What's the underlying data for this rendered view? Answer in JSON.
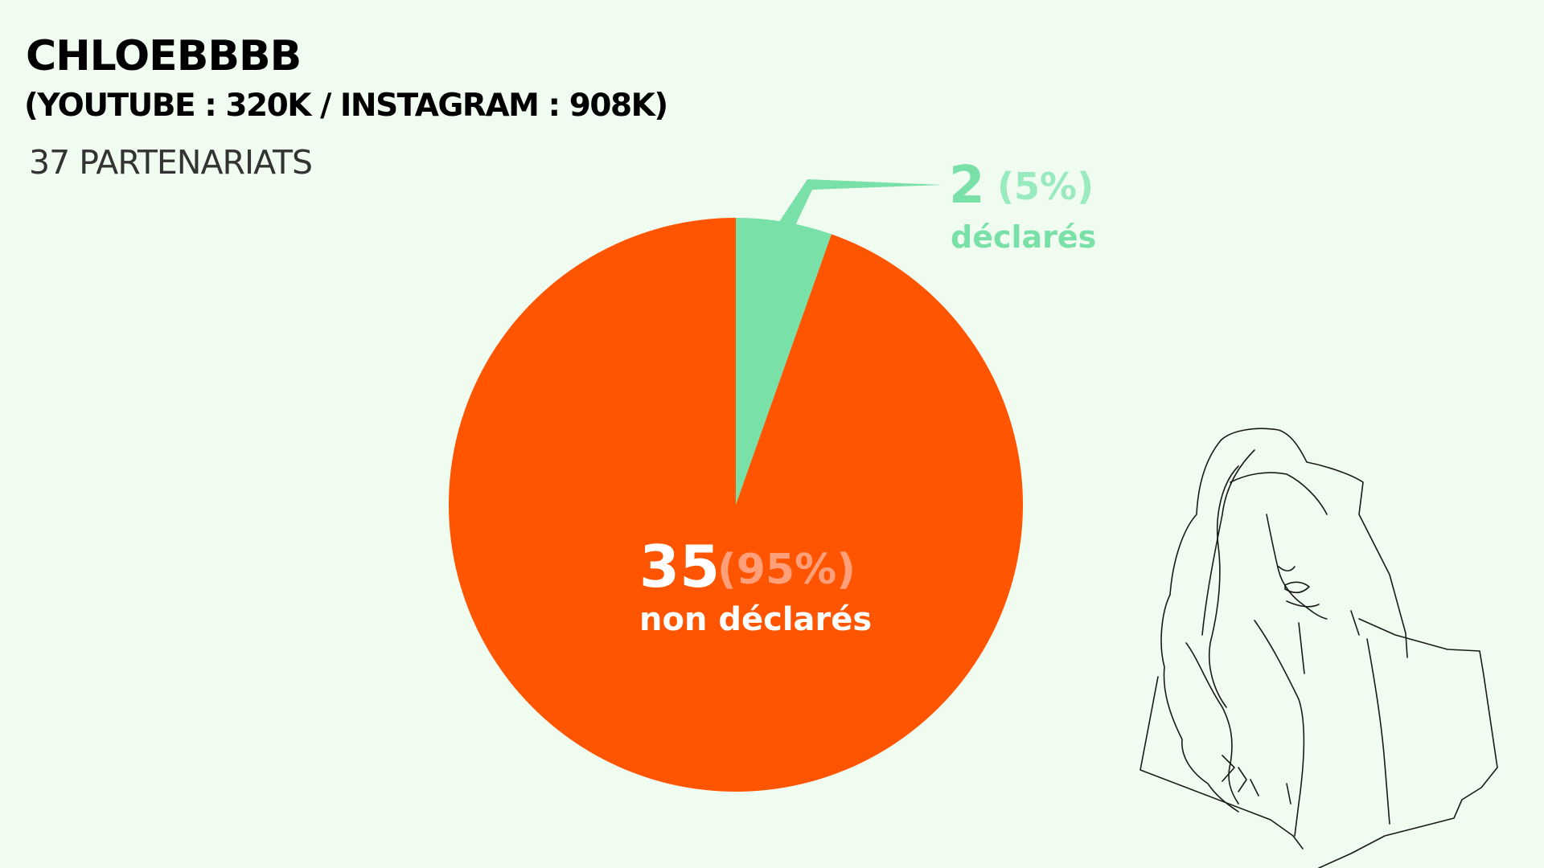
{
  "header": {
    "title": "CHLOEBBBB",
    "subtitle": "(YOUTUBE : 320K / INSTAGRAM : 908K)",
    "count": "37 PARTENARIATS"
  },
  "colors": {
    "background": "#f1fcf1",
    "declared": "#79e0a8",
    "declared_percent": "#9aeac0",
    "undeclared": "#ff5400",
    "undeclared_percent": "#ffa07a",
    "illustration_stroke": "#1a1a1a"
  },
  "illustration": {
    "icon": "woman-portrait-line-drawing-icon"
  },
  "chart_data": {
    "type": "pie",
    "total": 37,
    "slices": [
      {
        "name": "déclarés",
        "value": 2,
        "percent_label": "(5%)",
        "value_label": "2",
        "color": "#79e0a8"
      },
      {
        "name": "non déclarés",
        "value": 35,
        "percent_label": "(95%)",
        "value_label": "35",
        "color": "#ff5400"
      }
    ]
  }
}
